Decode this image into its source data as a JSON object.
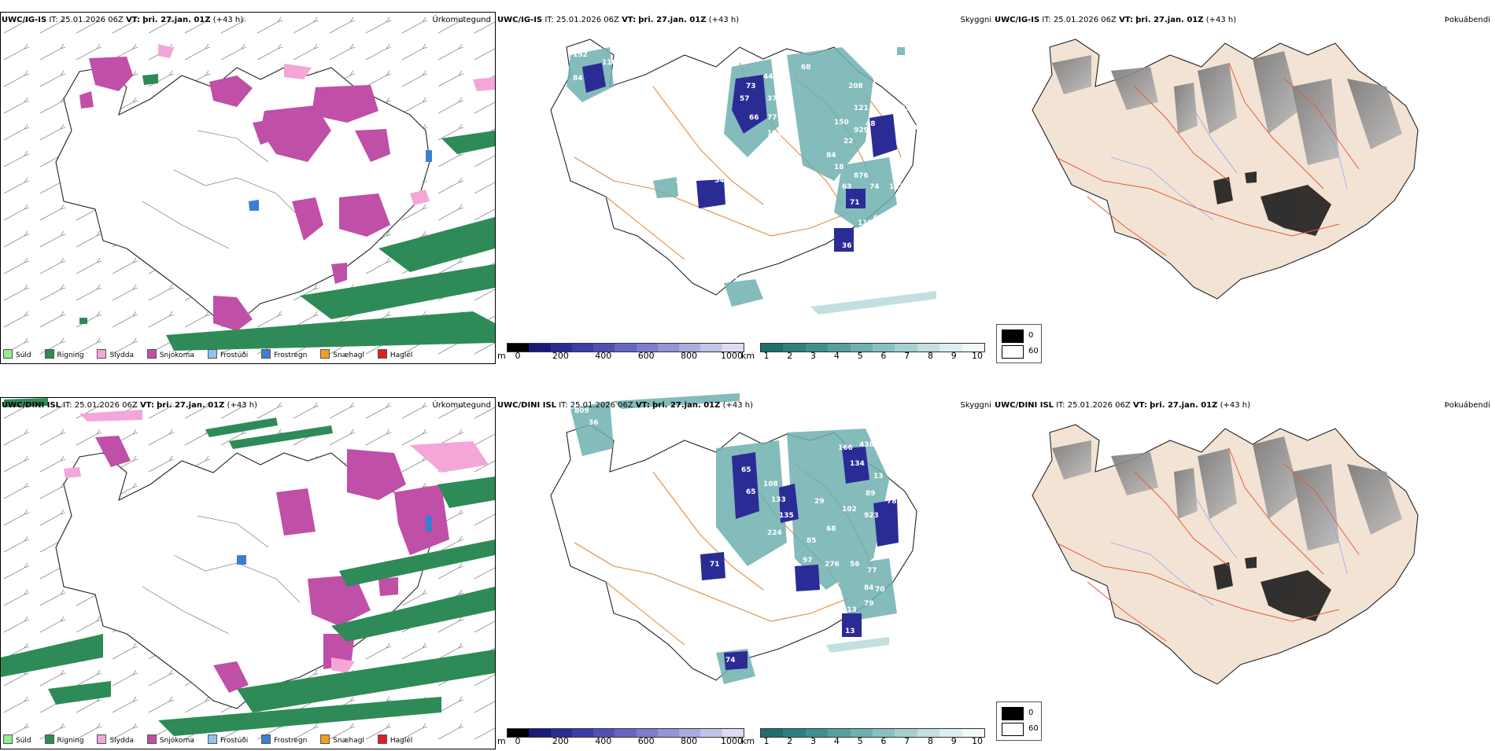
{
  "rows": [
    {
      "model": "UWC/IG-IS",
      "it_label": "IT:",
      "it_value": "25.01.2026 06Z",
      "vt_label": "VT:",
      "vt_value": "þri. 27.jan. 01Z",
      "lead": "(+43 h)",
      "panel1_title": "Úrkomutegund",
      "panel2_title": "Skyggni",
      "panel3_title": "Þokuábendi",
      "cloud_labels": [
        "152",
        "110",
        "84",
        "73",
        "44",
        "57",
        "37",
        "66",
        "77",
        "104",
        "68",
        "208",
        "150",
        "121",
        "48",
        "150",
        "123",
        "92",
        "22",
        "929",
        "35",
        "84",
        "18",
        "876",
        "74",
        "113",
        "63",
        "71",
        "111",
        "110",
        "60",
        "36",
        "54",
        "12",
        "71"
      ]
    },
    {
      "model": "UWC/DINI ISL",
      "it_label": "IT:",
      "it_value": "25.01.2026 06Z",
      "vt_label": "VT:",
      "vt_value": "þri. 27.jan. 01Z",
      "lead": "(+43 h)",
      "panel1_title": "Úrkomutegund",
      "panel2_title": "Skyggni",
      "panel3_title": "Þokuábendi",
      "cloud_labels": [
        "809",
        "36",
        "65",
        "108",
        "65",
        "133",
        "135",
        "224",
        "166",
        "438",
        "134",
        "115",
        "13",
        "48",
        "89",
        "923",
        "102",
        "68",
        "85",
        "29",
        "97",
        "56",
        "276",
        "77",
        "78",
        "79",
        "84",
        "70",
        "213",
        "13",
        "71",
        "74"
      ]
    }
  ],
  "precip_legend": [
    {
      "label": "Súld",
      "color": "#90ee90"
    },
    {
      "label": "Rigning",
      "color": "#2e8b57"
    },
    {
      "label": "Slydda",
      "color": "#f4a6d8"
    },
    {
      "label": "Snjókoma",
      "color": "#c04fa8"
    },
    {
      "label": "Frostúði",
      "color": "#8fc4f0"
    },
    {
      "label": "Frostregn",
      "color": "#3a7fd1"
    },
    {
      "label": "Snæhagl",
      "color": "#f0a020"
    },
    {
      "label": "Haglél",
      "color": "#e02020"
    }
  ],
  "cloud_base_bar": {
    "unit": "m",
    "ticks": [
      "0",
      "200",
      "400",
      "600",
      "800",
      "1000"
    ],
    "colors": [
      "#000000",
      "#1a1a7a",
      "#2b2b96",
      "#3c3ca8",
      "#5050b4",
      "#6666c0",
      "#7d7dcc",
      "#9494d6",
      "#ababe0",
      "#c4c4ea",
      "#dcdcf4"
    ]
  },
  "visibility_bar": {
    "unit": "km",
    "ticks": [
      "1",
      "2",
      "3",
      "4",
      "5",
      "6",
      "7",
      "8",
      "9",
      "10"
    ],
    "colors": [
      "#1f6e6e",
      "#2e8080",
      "#3f9090",
      "#56a0a0",
      "#6fb0b0",
      "#8ac0c0",
      "#a6d0d0",
      "#c2e0e0",
      "#dceeee",
      "#f2f8f8"
    ]
  },
  "fog_legend": [
    {
      "label": "0",
      "color": "#000000"
    },
    {
      "label": "60",
      "color": "#ffffff"
    }
  ]
}
